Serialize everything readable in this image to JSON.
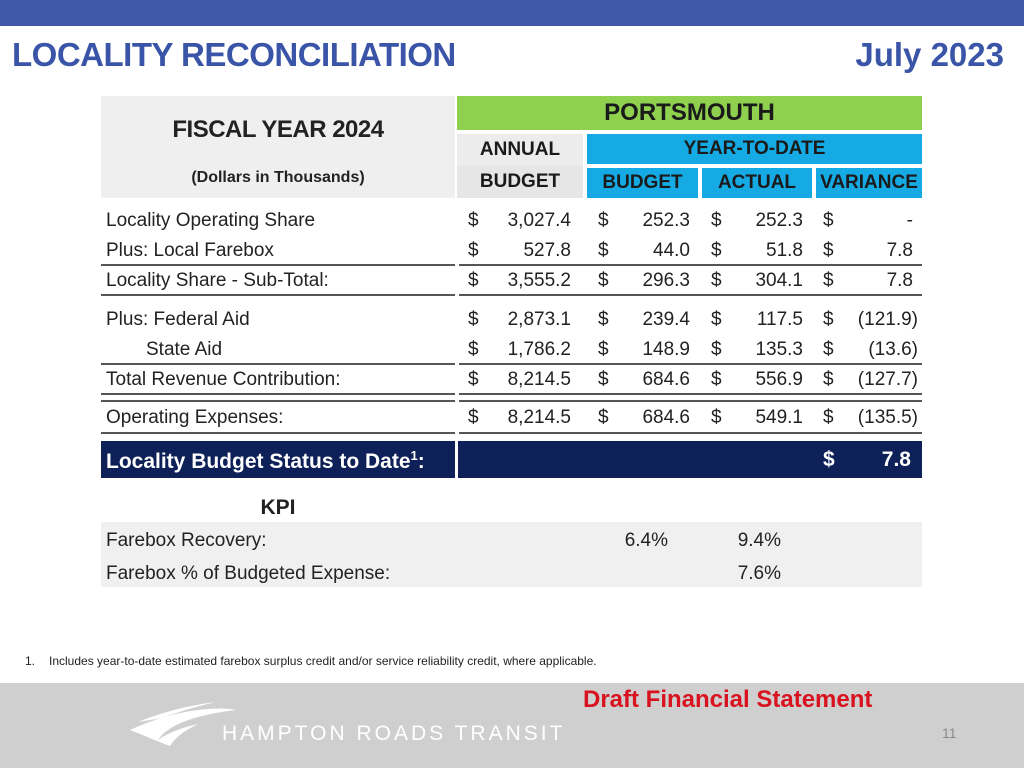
{
  "header": {
    "title": "LOCALITY RECONCILIATION",
    "date": "July 2023"
  },
  "table_header": {
    "fiscal_year": "FISCAL YEAR 2024",
    "units": "(Dollars in Thousands)",
    "locality": "PORTSMOUTH",
    "annual_line1": "ANNUAL",
    "annual_line2": "BUDGET",
    "ytd": "YEAR-TO-DATE",
    "ytd_budget": "BUDGET",
    "ytd_actual": "ACTUAL",
    "ytd_variance": "VARIANCE"
  },
  "currency": "$",
  "rows": [
    {
      "label": "Locality Operating Share",
      "annual": "3,027.4",
      "budget": "252.3",
      "actual": "252.3",
      "variance": "-"
    },
    {
      "label": "Plus: Local Farebox",
      "annual": "527.8",
      "budget": "44.0",
      "actual": "51.8",
      "variance": "7.8"
    },
    {
      "label": "Locality Share - Sub-Total:",
      "annual": "3,555.2",
      "budget": "296.3",
      "actual": "304.1",
      "variance": "7.8"
    },
    {
      "label": "Plus: Federal Aid",
      "annual": "2,873.1",
      "budget": "239.4",
      "actual": "117.5",
      "variance": "(121.9)"
    },
    {
      "label": "State Aid",
      "annual": "1,786.2",
      "budget": "148.9",
      "actual": "135.3",
      "variance": "(13.6)"
    },
    {
      "label": "Total Revenue Contribution:",
      "annual": "8,214.5",
      "budget": "684.6",
      "actual": "556.9",
      "variance": "(127.7)"
    },
    {
      "label": "Operating Expenses:",
      "annual": "8,214.5",
      "budget": "684.6",
      "actual": "549.1",
      "variance": "(135.5)"
    }
  ],
  "status": {
    "label": "Locality Budget Status to Date",
    "footnote_ref": "1",
    "colon": ":",
    "value": "7.8"
  },
  "kpi": {
    "title": "KPI",
    "rows": [
      {
        "label": "Farebox Recovery:",
        "budget": "6.4%",
        "actual": "9.4%"
      },
      {
        "label": "Farebox % of Budgeted Expense:",
        "budget": "",
        "actual": "7.6%"
      }
    ]
  },
  "footnote": {
    "number": "1.",
    "text": "Includes year-to-date estimated farebox surplus credit and/or service reliability credit, where applicable."
  },
  "footer": {
    "draft": "Draft Financial Statement",
    "logo": "HAMPTON ROADS TRANSIT",
    "page": "11"
  },
  "colors": {
    "title_blue": "#3a55a7",
    "topbar": "#3f58a8",
    "green": "#8fd14f",
    "cyan": "#15aae4",
    "navy": "#0d2057",
    "red": "#d9121f"
  }
}
